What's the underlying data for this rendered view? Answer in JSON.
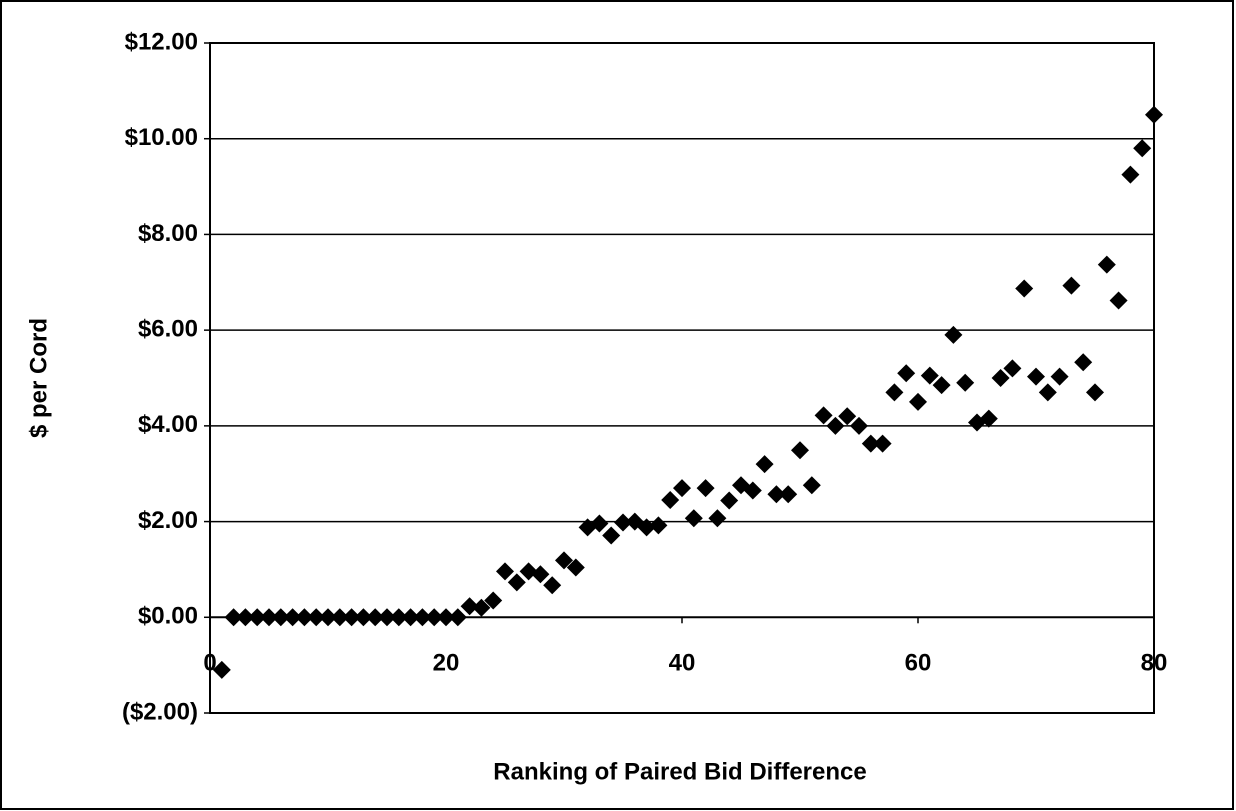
{
  "chart_data": {
    "type": "scatter",
    "x_label": "Ranking of Paired Bid Difference",
    "y_label": "$ per Cord",
    "series": [
      {
        "color": "#000000",
        "x": [
          1,
          2,
          3,
          4,
          5,
          6,
          7,
          8,
          9,
          10,
          11,
          12,
          13,
          14,
          15,
          16,
          17,
          18,
          19,
          20,
          21,
          22,
          23,
          24,
          25,
          26,
          27,
          28,
          29,
          30,
          31,
          32,
          33,
          34,
          35,
          36,
          37,
          38,
          39,
          40,
          41,
          42,
          43,
          44,
          45,
          46,
          47,
          48,
          49,
          50,
          51,
          52,
          53,
          54,
          55,
          56,
          57,
          58,
          59,
          60,
          61,
          62,
          63,
          64,
          65,
          66,
          67,
          68,
          69,
          70,
          71,
          72,
          73,
          74,
          75,
          76,
          77,
          78,
          79,
          80
        ],
        "values": [
          -1.1,
          0,
          0,
          0,
          0,
          0,
          0,
          0,
          0,
          0,
          0,
          0,
          0,
          0,
          0,
          0,
          0,
          0,
          0,
          0,
          0,
          0.23,
          0.2,
          0.35,
          0.96,
          0.73,
          0.96,
          0.9,
          0.67,
          1.19,
          1.04,
          1.88,
          1.96,
          1.71,
          1.98,
          2.0,
          1.88,
          1.92,
          2.45,
          2.7,
          2.07,
          2.7,
          2.07,
          2.44,
          2.76,
          2.65,
          3.2,
          2.57,
          2.57,
          3.49,
          2.76,
          4.22,
          4.0,
          4.2,
          4.0,
          3.63,
          3.63,
          4.7,
          5.1,
          4.5,
          5.05,
          4.85,
          5.9,
          4.9,
          4.07,
          4.15,
          5.0,
          5.2,
          6.87,
          5.03,
          4.7,
          5.03,
          6.93,
          5.33,
          4.7,
          7.37,
          6.62,
          9.25,
          9.8,
          10.5
        ]
      }
    ],
    "xlim": [
      0,
      80
    ],
    "xticks": [
      0,
      20,
      40,
      60,
      80
    ],
    "ylim": [
      -2,
      12
    ],
    "yticks": [
      {
        "value": -2,
        "label": "($2.00)"
      },
      {
        "value": 0,
        "label": "$0.00"
      },
      {
        "value": 2,
        "label": "$2.00"
      },
      {
        "value": 4,
        "label": "$4.00"
      },
      {
        "value": 6,
        "label": "$6.00"
      },
      {
        "value": 8,
        "label": "$8.00"
      },
      {
        "value": 10,
        "label": "$10.00"
      },
      {
        "value": 12,
        "label": "$12.00"
      }
    ],
    "grid": true
  }
}
